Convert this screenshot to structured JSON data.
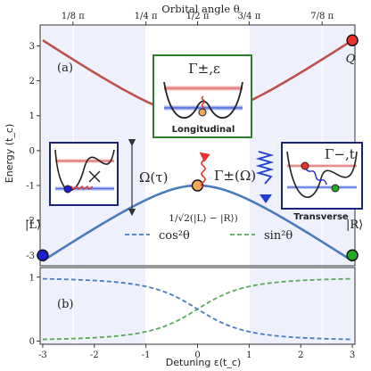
{
  "chart_data": [
    {
      "type": "line",
      "panel_label": "(a)",
      "top_xlabel": "Orbital angle θ",
      "top_ticks": [
        "1/8 π",
        "1/4 π",
        "1/2 π",
        "3/4 π",
        "7/8 π"
      ],
      "top_tick_detuning": [
        -2.414,
        -1.0,
        0.0,
        1.0,
        2.414
      ],
      "ylabel": "Energy (t_c)",
      "ylim": [
        -3.3,
        3.6
      ],
      "yticks": [
        "-3",
        "-2",
        "-1",
        "0",
        "1",
        "2",
        "3"
      ],
      "xlim": [
        -3.05,
        3.05
      ],
      "xticks": [
        "-3",
        "-2",
        "-1",
        "0",
        "1",
        "2",
        "3"
      ],
      "series": [
        {
          "color": "#c0504d",
          "function": "+sqrt(eps^2+1)"
        },
        {
          "color": "#4a7bbd",
          "function": "-sqrt(eps^2+1)"
        }
      ],
      "markers": [
        {
          "x": -3,
          "y": -3.0,
          "color": "#1f1fd6",
          "label": "|L⟩"
        },
        {
          "x": 3,
          "y": -3.0,
          "color": "#22aa22",
          "label": "|R⟩"
        },
        {
          "x": 3,
          "y": 3.16,
          "color": "#e8322d",
          "label": "Q"
        },
        {
          "x": 0,
          "y": -1.0,
          "color": "#f4a85a",
          "label": "1/√2(|L⟩ − |R⟩)"
        }
      ],
      "annotations": {
        "omega_tau": "Ω(τ)",
        "gamma_omega": "Γ±(Ω)",
        "longitudinal_title": "Γ±,ε",
        "longitudinal_caption": "Longitudinal",
        "transverse_title": "Γ−,t",
        "transverse_caption": "Transverse"
      }
    },
    {
      "type": "line",
      "panel_label": "(b)",
      "xlabel": "Detuning ε(t_c)",
      "ylim": [
        -0.05,
        1.15
      ],
      "yticks": [
        "0",
        "1"
      ],
      "series": [
        {
          "name": "sin²θ",
          "color": "#5aa85a",
          "function": "0.5*(1+eps/sqrt(eps^2+1))"
        },
        {
          "name": "cos²θ",
          "color": "#4a7bbd",
          "function": "0.5*(1-eps/sqrt(eps^2+1))"
        }
      ]
    }
  ]
}
